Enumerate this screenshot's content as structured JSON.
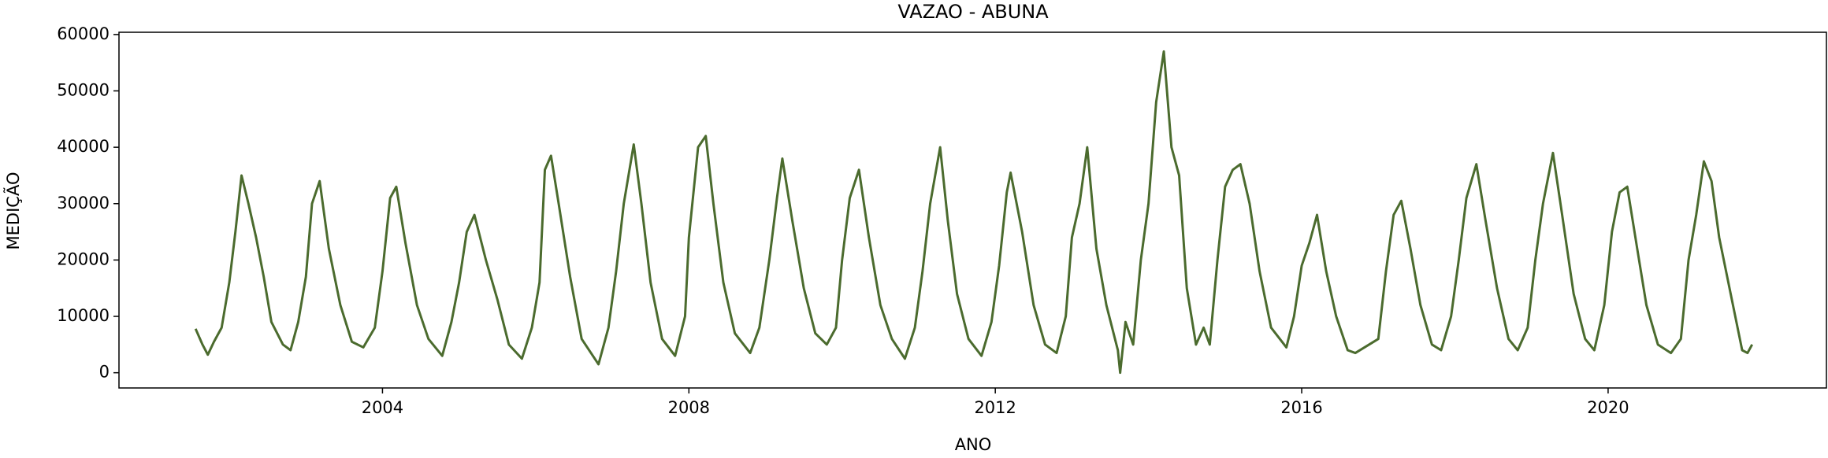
{
  "chart_data": {
    "type": "line",
    "title": "VAZAO - ABUNA",
    "x_label": "ANO",
    "y_label": "MEDIÇÃO",
    "xlim": [
      2000.56,
      2022.85
    ],
    "xticks": [
      2004,
      2008,
      2012,
      2016,
      2020
    ],
    "ylim": [
      -2700,
      60400
    ],
    "yticks": [
      0,
      10000,
      20000,
      30000,
      40000,
      50000,
      60000
    ],
    "grid": false,
    "series": [
      {
        "name": "VAZAO",
        "color": "#4b6b2e",
        "x": [
          2001.56,
          2001.65,
          2001.72,
          2001.8,
          2001.9,
          2002.0,
          2002.08,
          2002.16,
          2002.25,
          2002.35,
          2002.45,
          2002.55,
          2002.7,
          2002.8,
          2002.9,
          2003.0,
          2003.08,
          2003.18,
          2003.3,
          2003.45,
          2003.6,
          2003.75,
          2003.9,
          2004.0,
          2004.1,
          2004.18,
          2004.3,
          2004.45,
          2004.6,
          2004.78,
          2004.9,
          2005.0,
          2005.1,
          2005.2,
          2005.35,
          2005.5,
          2005.65,
          2005.82,
          2005.95,
          2006.05,
          2006.12,
          2006.2,
          2006.3,
          2006.45,
          2006.6,
          2006.82,
          2006.95,
          2007.05,
          2007.15,
          2007.28,
          2007.38,
          2007.5,
          2007.65,
          2007.82,
          2007.95,
          2008.0,
          2008.12,
          2008.22,
          2008.32,
          2008.45,
          2008.6,
          2008.8,
          2008.92,
          2009.05,
          2009.15,
          2009.22,
          2009.35,
          2009.5,
          2009.65,
          2009.8,
          2009.92,
          2010.0,
          2010.1,
          2010.22,
          2010.35,
          2010.5,
          2010.65,
          2010.82,
          2010.95,
          2011.05,
          2011.15,
          2011.28,
          2011.38,
          2011.5,
          2011.65,
          2011.82,
          2011.95,
          2012.05,
          2012.15,
          2012.2,
          2012.35,
          2012.5,
          2012.65,
          2012.8,
          2012.92,
          2013.0,
          2013.1,
          2013.2,
          2013.32,
          2013.45,
          2013.6,
          2013.63,
          2013.7,
          2013.8,
          2013.9,
          2014.0,
          2014.1,
          2014.2,
          2014.3,
          2014.4,
          2014.5,
          2014.62,
          2014.72,
          2014.8,
          2014.9,
          2015.0,
          2015.1,
          2015.2,
          2015.32,
          2015.45,
          2015.6,
          2015.8,
          2015.9,
          2016.0,
          2016.1,
          2016.2,
          2016.32,
          2016.45,
          2016.6,
          2016.7,
          2017.0,
          2017.1,
          2017.2,
          2017.3,
          2017.42,
          2017.55,
          2017.7,
          2017.82,
          2017.95,
          2018.05,
          2018.15,
          2018.28,
          2018.4,
          2018.55,
          2018.7,
          2018.82,
          2018.95,
          2019.05,
          2019.15,
          2019.28,
          2019.4,
          2019.55,
          2019.7,
          2019.82,
          2019.95,
          2020.05,
          2020.15,
          2020.25,
          2020.38,
          2020.5,
          2020.65,
          2020.82,
          2020.95,
          2021.05,
          2021.15,
          2021.25,
          2021.35,
          2021.45,
          2021.75,
          2021.82,
          2021.88
        ],
        "values": [
          7800,
          5000,
          3200,
          5500,
          8000,
          16000,
          25000,
          35000,
          30000,
          24000,
          17000,
          9000,
          5000,
          4000,
          9000,
          17000,
          30000,
          34000,
          22000,
          12000,
          5500,
          4500,
          8000,
          18000,
          31000,
          33000,
          23000,
          12000,
          6000,
          3000,
          9000,
          16000,
          25000,
          28000,
          20000,
          13000,
          5000,
          2500,
          8000,
          16000,
          36000,
          38500,
          30000,
          17000,
          6000,
          1500,
          8000,
          18000,
          30000,
          40500,
          30000,
          16000,
          6000,
          3000,
          10000,
          24000,
          40000,
          42000,
          30000,
          16000,
          7000,
          3500,
          8000,
          20000,
          31000,
          38000,
          27000,
          15000,
          7000,
          5000,
          8000,
          20000,
          31000,
          36000,
          24000,
          12000,
          6000,
          2500,
          8000,
          18000,
          30000,
          40000,
          27000,
          14000,
          6000,
          3000,
          9000,
          19000,
          32000,
          35500,
          25000,
          12000,
          5000,
          3500,
          10000,
          24000,
          30000,
          40000,
          22000,
          12000,
          4000,
          0,
          9000,
          5000,
          20000,
          30000,
          48000,
          57000,
          40000,
          35000,
          15000,
          5000,
          8000,
          5000,
          20000,
          33000,
          36000,
          37000,
          30000,
          18000,
          8000,
          4500,
          10000,
          19000,
          23000,
          28000,
          18000,
          10000,
          4000,
          3500,
          6000,
          18000,
          28000,
          30500,
          22000,
          12000,
          5000,
          4000,
          10000,
          20000,
          31000,
          37000,
          27000,
          15000,
          6000,
          4000,
          8000,
          20000,
          30000,
          39000,
          28000,
          14000,
          6000,
          4000,
          12000,
          25000,
          32000,
          33000,
          22000,
          12000,
          5000,
          3500,
          6000,
          20000,
          28000,
          37500,
          34000,
          24000,
          4000,
          3500,
          5000
        ]
      }
    ]
  }
}
